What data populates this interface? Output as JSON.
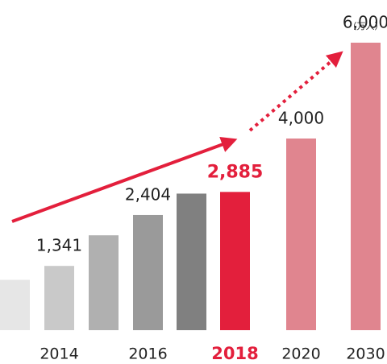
{
  "chart_data": {
    "type": "bar",
    "categories": [
      null,
      "2014",
      null,
      "2016",
      null,
      "2018",
      "2020",
      "2030"
    ],
    "values": [
      1050,
      1341,
      1980,
      2404,
      2850,
      2885,
      4000,
      6000
    ],
    "value_labels": [
      null,
      "1,341",
      null,
      "2,404",
      null,
      "2,885",
      "4,000",
      "6,000"
    ],
    "colors": [
      "#e6e6e6",
      "#c9c9c9",
      "#b0b0b0",
      "#9a9a9a",
      "#808080",
      "#e31f3c",
      "#e0858f",
      "#e0858f"
    ],
    "highlight": 5,
    "highlight_color": "#e31f3c",
    "unit": "（万人）",
    "ylim": [
      0,
      6000
    ]
  }
}
